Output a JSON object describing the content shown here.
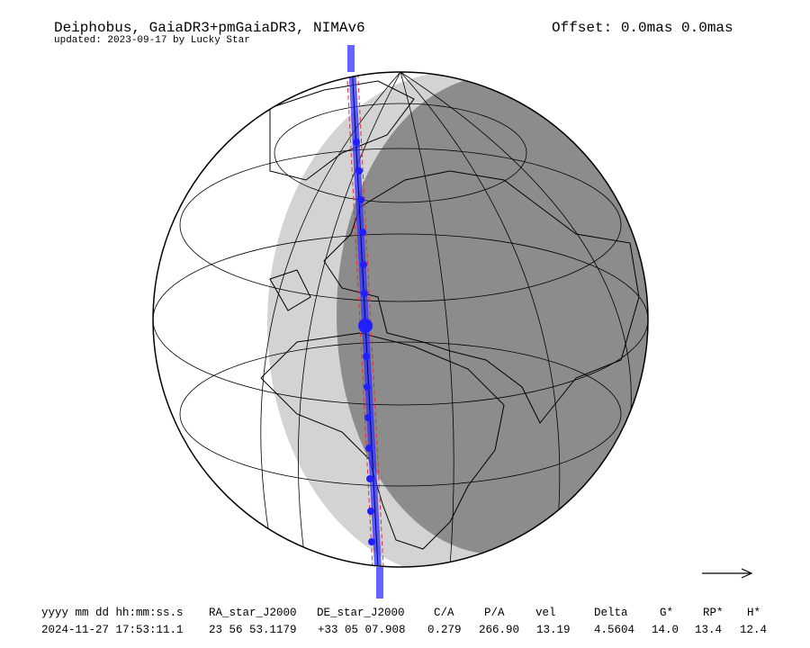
{
  "header": {
    "title": "Deiphobus, GaiaDR3+pmGaiaDR3, NIMAv6",
    "subtitle": "updated: 2023-09-17 by Lucky Star",
    "offset": "Offset: 0.0mas 0.0mas"
  },
  "table": {
    "header": [
      "yyyy mm dd hh:mm:ss.s",
      "RA_star_J2000",
      "DE_star_J2000",
      "C/A",
      "P/A",
      "vel",
      "Delta",
      "G*",
      "RP*",
      "H*"
    ],
    "rows": [
      [
        "2024-11-27 17:53:11.1",
        "23 56 53.1179",
        "+33 05 07.908",
        "0.279",
        "266.90",
        "13.19",
        "4.5604",
        "14.0",
        "13.4",
        "12.4"
      ]
    ]
  }
}
